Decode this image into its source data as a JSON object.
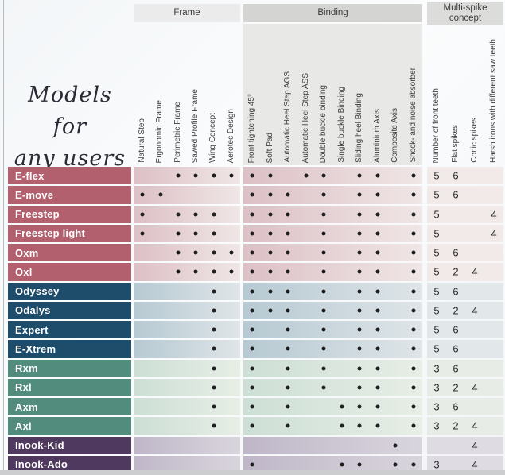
{
  "page": {
    "title_line1": "Models for",
    "title_line2": "any users"
  },
  "groups": [
    {
      "label": "Frame",
      "columns": [
        "Natural Step",
        "Ergonomic Frame",
        "Perimetric Frame",
        "Sawed Profile Frame",
        "Wing Concept",
        "Aerotec Design"
      ]
    },
    {
      "label": "Binding",
      "columns": [
        "Front tightening 45°",
        "Soft Pad",
        "Automatic Heel Step AGS",
        "Automatic Heel Step ASS",
        "Double buckle binding",
        "Single buckle Binding",
        "Sliding heel Binding",
        "Aluminium Axis",
        "Composite Axis",
        "Shock- and noise absorber"
      ]
    },
    {
      "label": "Multi-spike concept",
      "columns": [
        "Number of front teeth",
        "Flat spikes",
        "Conic spikes",
        "Harsh irons with different saw teeth"
      ]
    }
  ],
  "rows": [
    {
      "name": "E-flex",
      "color": "rose",
      "frame": [
        0,
        0,
        1,
        1,
        1,
        1
      ],
      "binding": [
        1,
        1,
        0,
        1,
        1,
        0,
        1,
        1,
        0,
        1
      ],
      "spikes": [
        "5",
        "6",
        "",
        ""
      ]
    },
    {
      "name": "E-move",
      "color": "rose",
      "frame": [
        1,
        1,
        0,
        0,
        0,
        0
      ],
      "binding": [
        1,
        1,
        1,
        0,
        1,
        0,
        1,
        1,
        0,
        1
      ],
      "spikes": [
        "5",
        "6",
        "",
        ""
      ]
    },
    {
      "name": "Freestep",
      "color": "rose",
      "frame": [
        1,
        0,
        1,
        1,
        1,
        0
      ],
      "binding": [
        1,
        1,
        1,
        0,
        1,
        0,
        1,
        1,
        0,
        1
      ],
      "spikes": [
        "5",
        "",
        "",
        "4"
      ]
    },
    {
      "name": "Freestep light",
      "color": "rose",
      "frame": [
        1,
        0,
        1,
        1,
        1,
        0
      ],
      "binding": [
        1,
        1,
        1,
        0,
        1,
        0,
        1,
        1,
        0,
        1
      ],
      "spikes": [
        "5",
        "",
        "",
        "4"
      ]
    },
    {
      "name": "Oxm",
      "color": "rose",
      "frame": [
        0,
        0,
        1,
        1,
        1,
        1
      ],
      "binding": [
        1,
        1,
        1,
        0,
        1,
        0,
        1,
        1,
        0,
        1
      ],
      "spikes": [
        "5",
        "6",
        "",
        ""
      ]
    },
    {
      "name": "Oxl",
      "color": "rose",
      "frame": [
        0,
        0,
        1,
        1,
        1,
        1
      ],
      "binding": [
        1,
        1,
        1,
        0,
        1,
        0,
        1,
        1,
        0,
        1
      ],
      "spikes": [
        "5",
        "2",
        "4",
        ""
      ]
    },
    {
      "name": "Odyssey",
      "color": "navy",
      "frame": [
        0,
        0,
        0,
        0,
        1,
        0
      ],
      "binding": [
        1,
        1,
        1,
        0,
        1,
        0,
        1,
        1,
        0,
        1
      ],
      "spikes": [
        "5",
        "6",
        "",
        ""
      ]
    },
    {
      "name": "Odalys",
      "color": "navy",
      "frame": [
        0,
        0,
        0,
        0,
        1,
        0
      ],
      "binding": [
        1,
        1,
        1,
        0,
        1,
        0,
        1,
        1,
        0,
        1
      ],
      "spikes": [
        "5",
        "2",
        "4",
        ""
      ]
    },
    {
      "name": "Expert",
      "color": "navy",
      "frame": [
        0,
        0,
        0,
        0,
        1,
        0
      ],
      "binding": [
        1,
        0,
        1,
        0,
        1,
        0,
        1,
        1,
        0,
        1
      ],
      "spikes": [
        "5",
        "6",
        "",
        ""
      ]
    },
    {
      "name": "E-Xtrem",
      "color": "navy",
      "frame": [
        0,
        0,
        0,
        0,
        1,
        0
      ],
      "binding": [
        1,
        0,
        1,
        0,
        1,
        0,
        1,
        1,
        0,
        1
      ],
      "spikes": [
        "5",
        "6",
        "",
        ""
      ]
    },
    {
      "name": "Rxm",
      "color": "teal",
      "frame": [
        0,
        0,
        0,
        0,
        1,
        0
      ],
      "binding": [
        1,
        0,
        1,
        0,
        1,
        0,
        1,
        1,
        0,
        1
      ],
      "spikes": [
        "3",
        "6",
        "",
        ""
      ]
    },
    {
      "name": "Rxl",
      "color": "teal",
      "frame": [
        0,
        0,
        0,
        0,
        1,
        0
      ],
      "binding": [
        1,
        0,
        1,
        0,
        1,
        0,
        1,
        1,
        0,
        1
      ],
      "spikes": [
        "3",
        "2",
        "4",
        ""
      ]
    },
    {
      "name": "Axm",
      "color": "teal",
      "frame": [
        0,
        0,
        0,
        0,
        1,
        0
      ],
      "binding": [
        1,
        0,
        1,
        0,
        0,
        1,
        1,
        1,
        0,
        1
      ],
      "spikes": [
        "3",
        "6",
        "",
        ""
      ]
    },
    {
      "name": "Axl",
      "color": "teal",
      "frame": [
        0,
        0,
        0,
        0,
        1,
        0
      ],
      "binding": [
        1,
        0,
        1,
        0,
        0,
        1,
        1,
        1,
        0,
        1
      ],
      "spikes": [
        "3",
        "2",
        "4",
        ""
      ]
    },
    {
      "name": "Inook-Kid",
      "color": "purple",
      "frame": [
        0,
        0,
        0,
        0,
        0,
        0
      ],
      "binding": [
        0,
        0,
        0,
        0,
        0,
        0,
        0,
        0,
        1,
        0
      ],
      "spikes": [
        "",
        "",
        "4",
        ""
      ]
    },
    {
      "name": "Inook-Ado",
      "color": "purple",
      "frame": [
        0,
        0,
        0,
        0,
        0,
        0
      ],
      "binding": [
        1,
        0,
        0,
        0,
        0,
        1,
        1,
        0,
        1,
        1
      ],
      "spikes": [
        "3",
        "",
        "4",
        ""
      ]
    }
  ],
  "colors": {
    "rose": {
      "label": "#b2606d",
      "tint": "#dcc0c6",
      "tint_end": "#f0e6e6",
      "spike_bg": "#f1eae9"
    },
    "navy": {
      "label": "#1e4c6b",
      "tint": "#b6c9d2",
      "tint_end": "#dfe5e8",
      "spike_bg": "#e2e7ea"
    },
    "teal": {
      "label": "#528c7c",
      "tint": "#cddfd5",
      "tint_end": "#e7eee6",
      "spike_bg": "#e7ece7"
    },
    "purple": {
      "label": "#50395e",
      "tint": "#bfb7c8",
      "tint_end": "#d9d5dd",
      "spike_bg": "#dedce2"
    },
    "header": {
      "frame_bg": "#ebebeb",
      "binding_bg": "#d4d4d3",
      "multi_bg": "#dcdcdb",
      "binding_label_area_bg": "#e8e8e6"
    },
    "dot": "#1f1f1f"
  }
}
